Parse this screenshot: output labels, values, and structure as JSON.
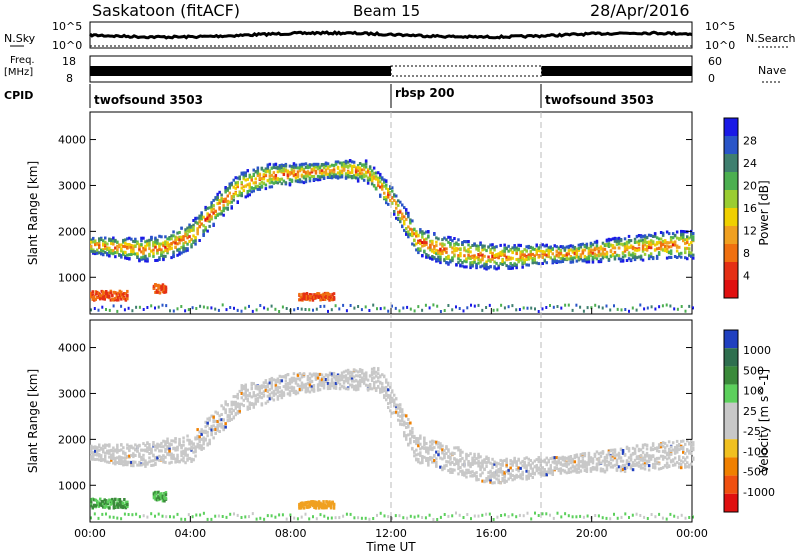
{
  "header": {
    "station": "Saskatoon (fitACF)",
    "beam": "Beam 15",
    "date": "28/Apr/2016"
  },
  "nsky_panel": {
    "left_label": "N.Sky",
    "left_ticks": [
      "10^5",
      "10^0"
    ],
    "right_ticks": [
      "10^5",
      "10^0"
    ],
    "right_label": "N.Search"
  },
  "freq_panel": {
    "left_label_1": "Freq.",
    "left_label_2": "[MHz]",
    "left_ticks": [
      "18",
      "8"
    ],
    "right_ticks": [
      "60",
      "0"
    ],
    "right_label": "Nave"
  },
  "cpid": {
    "label": "CPID",
    "segments": [
      {
        "name": "twofsound 3503",
        "start_hour": 0
      },
      {
        "name": "rbsp 200",
        "start_hour": 12
      },
      {
        "name": "twofsound 3503",
        "start_hour": 18
      }
    ]
  },
  "x_axis": {
    "label": "Time UT",
    "ticks": [
      "00:00",
      "04:00",
      "08:00",
      "12:00",
      "16:00",
      "20:00",
      "00:00"
    ],
    "range_hours": [
      0,
      24
    ]
  },
  "chart_data": [
    {
      "type": "heatmap",
      "title": "",
      "xlabel": "",
      "ylabel": "Slant Range [km]",
      "yticks": [
        "1000",
        "2000",
        "3000",
        "4000"
      ],
      "ylim": [
        200,
        4600
      ],
      "colorbar": {
        "label": "Power [dB]",
        "ticks": [
          "4",
          "8",
          "12",
          "16",
          "20",
          "24",
          "28"
        ],
        "colors": [
          "#1a1ae6",
          "#2a55c8",
          "#3f7f6f",
          "#4caf50",
          "#9acd32",
          "#f0d000",
          "#f0a020",
          "#f07010",
          "#e53015",
          "#e01010"
        ]
      },
      "echo_bands": [
        {
          "name": "F-region band",
          "hours": [
            0,
            1,
            2,
            3,
            4,
            5,
            6,
            7,
            8,
            9,
            10,
            11,
            12,
            13,
            14,
            15,
            16,
            17,
            18,
            19,
            20,
            21,
            22,
            23,
            24
          ],
          "range_km": [
            1700,
            1650,
            1600,
            1650,
            1900,
            2500,
            3000,
            3200,
            3250,
            3300,
            3350,
            3300,
            2700,
            1800,
            1600,
            1500,
            1450,
            1450,
            1500,
            1500,
            1550,
            1600,
            1650,
            1700,
            1700
          ]
        },
        {
          "name": "near range patch",
          "hours": [
            0.0,
            1.5
          ],
          "range_km": [
            500,
            700
          ]
        },
        {
          "name": "near range patch",
          "hours": [
            2.5,
            3.0
          ],
          "range_km": [
            650,
            850
          ]
        },
        {
          "name": "E-region patch",
          "hours": [
            8.3,
            9.7
          ],
          "range_km": [
            500,
            650
          ]
        }
      ]
    },
    {
      "type": "heatmap",
      "title": "",
      "xlabel": "",
      "ylabel": "Slant Range [km]",
      "yticks": [
        "1000",
        "2000",
        "3000",
        "4000"
      ],
      "ylim": [
        200,
        4600
      ],
      "colorbar": {
        "label": "Velocity [m s^-1]",
        "ticks": [
          "1000",
          "500",
          "100",
          "25",
          "-25",
          "-100",
          "-500",
          "-1000"
        ],
        "colors": [
          "#2040c0",
          "#2f6f4f",
          "#3a8a3a",
          "#5cd05c",
          "#c8c8c8",
          "#c8c8c8",
          "#f0c020",
          "#f08000",
          "#f05010",
          "#e01010"
        ]
      },
      "echo_bands": [
        {
          "name": "ground scatter band",
          "hours": [
            0,
            2,
            4,
            6,
            8,
            10,
            11.5,
            13,
            16,
            20,
            24
          ],
          "range_km": [
            1700,
            1650,
            1800,
            2900,
            3200,
            3300,
            3300,
            1800,
            1300,
            1500,
            1700
          ]
        },
        {
          "name": "near range patch",
          "hours": [
            0.0,
            1.5
          ],
          "range_km": [
            500,
            700
          ]
        },
        {
          "name": "near range patch",
          "hours": [
            2.5,
            3.0
          ],
          "range_km": [
            650,
            850
          ]
        },
        {
          "name": "E-region patch",
          "hours": [
            8.3,
            9.7
          ],
          "range_km": [
            500,
            650
          ]
        }
      ]
    }
  ]
}
